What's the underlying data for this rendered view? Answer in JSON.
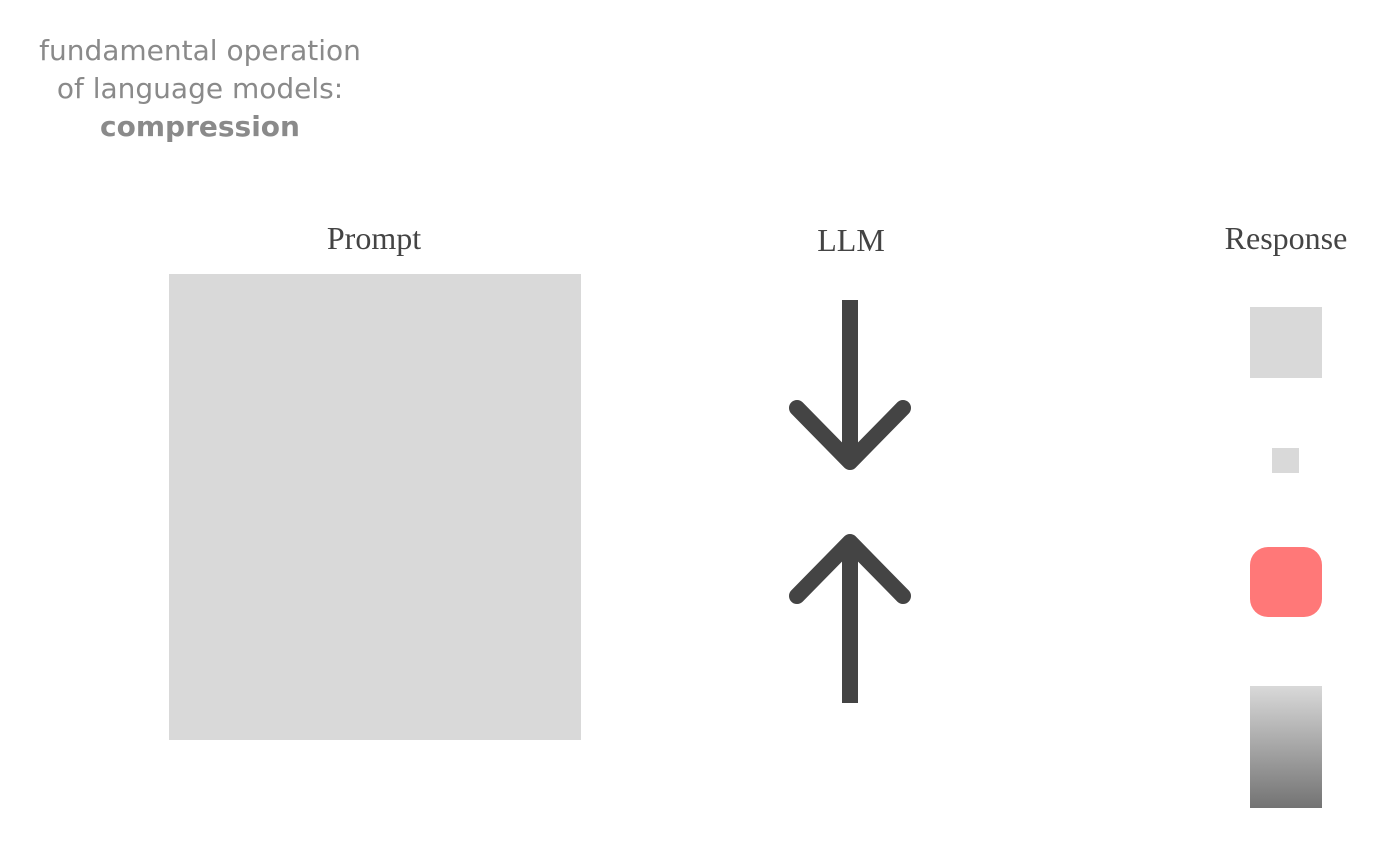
{
  "caption": {
    "line1": "fundamental operation",
    "line2": "of language models:",
    "line3": "compression"
  },
  "labels": {
    "prompt": "Prompt",
    "llm": "LLM",
    "response": "Response"
  },
  "colors": {
    "box_gray": "#d9d9d9",
    "arrow": "#444444",
    "accent_red": "#ff7878",
    "gradient_top": "#d9d9d9",
    "gradient_bottom": "#737373"
  },
  "icons": {
    "top": "arrow-down-icon",
    "bottom": "arrow-up-icon"
  }
}
